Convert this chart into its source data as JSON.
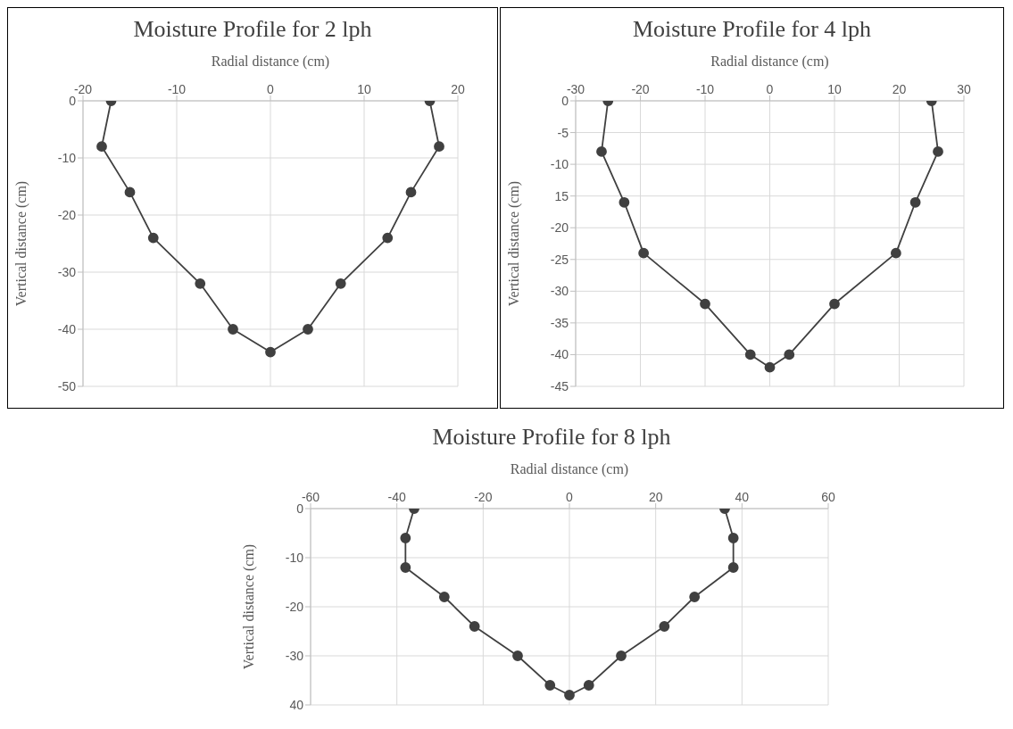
{
  "chart_data": [
    {
      "type": "line",
      "title": "Moisture Profile for  2 lph",
      "xlabel": "Radial distance (cm)",
      "ylabel": "Vertical distance (cm)",
      "xlim": [
        -20,
        20
      ],
      "xticks": [
        -20,
        -10,
        0,
        10,
        20
      ],
      "ylim": [
        -50,
        0
      ],
      "yticks": [
        0,
        -10,
        -20,
        -30,
        -40,
        -50
      ],
      "grid": true,
      "marker": "circle",
      "line_style": "solid",
      "color": "#404040",
      "x": [
        -17,
        -18,
        -15,
        -12.5,
        -7.5,
        -4,
        0,
        4,
        7.5,
        12.5,
        15,
        18,
        17
      ],
      "values": [
        0,
        -8,
        -16,
        -24,
        -32,
        -40,
        -44,
        -40,
        -32,
        -24,
        -16,
        -8,
        0
      ]
    },
    {
      "type": "line",
      "title": "Moisture Profile for  4 lph",
      "xlabel": "Radial distance (cm)",
      "ylabel": "Vertical distance (cm)",
      "xlim": [
        -30,
        30
      ],
      "xticks": [
        -30,
        -20,
        -10,
        0,
        10,
        20,
        30
      ],
      "ylim": [
        -45,
        0
      ],
      "yticks": [
        0,
        -5,
        -10,
        {
          "value": -15,
          "label": "15"
        },
        -20,
        -25,
        -30,
        -35,
        -40,
        -45
      ],
      "grid": true,
      "marker": "circle",
      "line_style": "solid",
      "color": "#404040",
      "x": [
        -25,
        -26,
        -22.5,
        -19.5,
        -10,
        -3,
        0,
        3,
        10,
        19.5,
        22.5,
        26,
        25
      ],
      "values": [
        0,
        -8,
        -16,
        -24,
        -32,
        -40,
        -42,
        -40,
        -32,
        -24,
        -16,
        -8,
        0
      ]
    },
    {
      "type": "line",
      "title": "Moisture Profile for 8 lph",
      "xlabel": "Radial distance (cm)",
      "ylabel": "Vertical distance (cm)",
      "xlim": [
        -60,
        60
      ],
      "xticks": [
        -60,
        -40,
        -20,
        0,
        20,
        40,
        60
      ],
      "ylim": [
        -40,
        0
      ],
      "yticks": [
        0,
        -10,
        -20,
        -30,
        {
          "value": -40,
          "label": "40"
        }
      ],
      "grid": true,
      "marker": "circle",
      "line_style": "solid",
      "color": "#404040",
      "x": [
        -36,
        -38,
        -38,
        -29,
        -22,
        -12,
        -4.5,
        0,
        4.5,
        12,
        22,
        29,
        38,
        38,
        36
      ],
      "values": [
        0,
        -6,
        -12,
        -18,
        -24,
        -30,
        -36,
        -38,
        -36,
        -30,
        -24,
        -18,
        -12,
        -6,
        0
      ]
    }
  ]
}
